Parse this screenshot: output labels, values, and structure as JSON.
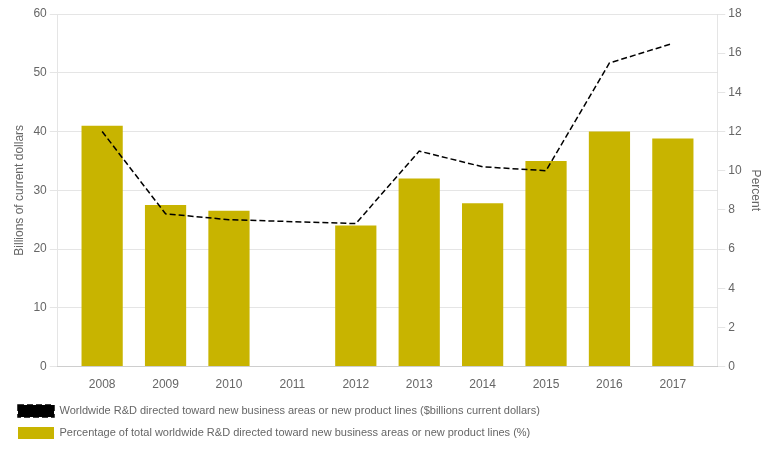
{
  "chart_data": {
    "type": "bar",
    "x": [
      2008,
      2009,
      2010,
      2012,
      2013,
      2014,
      2015,
      2016,
      2017
    ],
    "series": [
      {
        "name": "Percentage of total worldwide R&D directed toward new business areas or new product lines (%)",
        "type": "bar",
        "color": "#C8B400",
        "values": [
          41.0,
          27.5,
          26.5,
          24.0,
          32.0,
          27.8,
          35.0,
          40.0,
          38.8
        ]
      },
      {
        "name": "Worldwide R&D directed toward new business areas or new product lines ($billions current dollars)",
        "type": "line",
        "color": "#000000",
        "line_style": "dashed",
        "axis": "y2",
        "values": [
          12.0,
          7.8,
          7.5,
          7.3,
          11.0,
          10.2,
          10.0,
          15.5,
          16.5
        ]
      }
    ],
    "xlim": [
      2007.3,
      2017.7
    ],
    "xticks": [
      2008,
      2009,
      2010,
      2011,
      2012,
      2013,
      2014,
      2015,
      2016,
      2017
    ],
    "ylabel": "Billions of current dollars",
    "ylim": [
      0,
      60
    ],
    "yticks": [
      0,
      10,
      20,
      30,
      40,
      50,
      60
    ],
    "y2label": "Percent",
    "y2lim": [
      0,
      18
    ],
    "y2ticks": [
      0,
      2,
      4,
      6,
      8,
      10,
      12,
      14,
      16,
      18
    ],
    "grid": true,
    "legend": "bottom"
  }
}
